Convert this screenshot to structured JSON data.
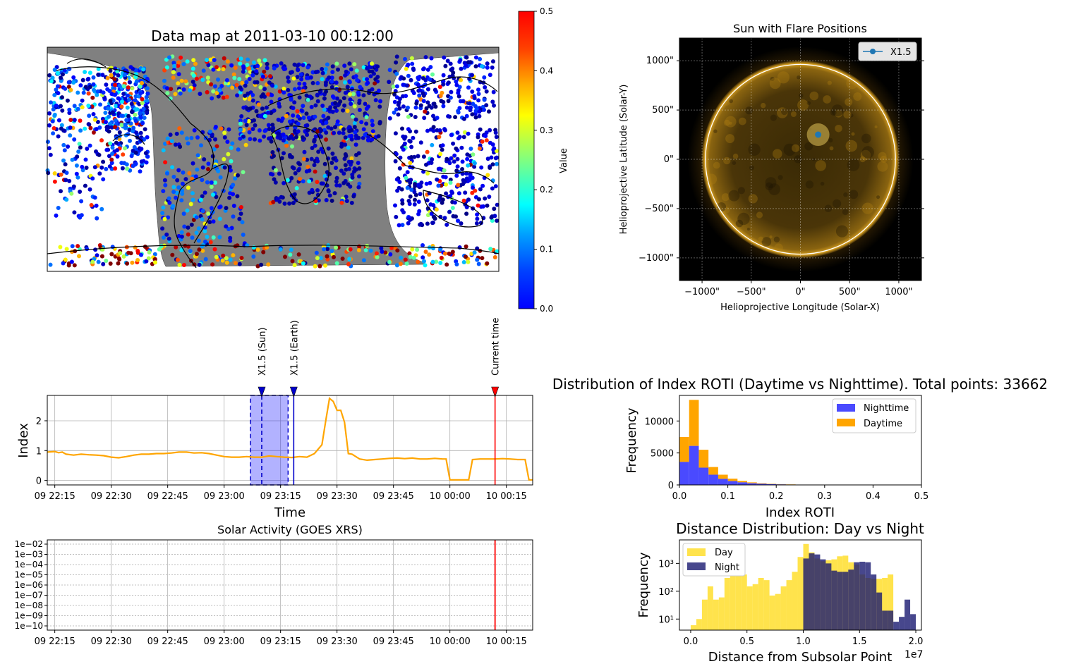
{
  "chart_data": [
    {
      "id": "map",
      "type": "scatter",
      "title": "Data map at 2011-03-10 00:12:00",
      "colorbar": {
        "label": "Value",
        "range": [
          0,
          0.5
        ],
        "ticks": [
          "0.0",
          "0.1",
          "0.2",
          "0.3",
          "0.4",
          "0.5"
        ],
        "colormap": "jet"
      },
      "night_shade_color": "#808080",
      "point_count_displayed": 33662
    },
    {
      "id": "sun",
      "type": "scatter",
      "title": "Sun with Flare Positions",
      "xlabel": "Helioprojective Longitude (Solar-X)",
      "ylabel": "Helioprojective Latitude (Solar-Y)",
      "xticks": [
        "−1000\"",
        "−500\"",
        "0\"",
        "500\"",
        "1000\""
      ],
      "yticks": [
        "1000\"",
        "500\"",
        "0\"",
        "−500\"",
        "−1000\""
      ],
      "xlim": [
        -1230,
        1230
      ],
      "ylim": [
        -1230,
        1230
      ],
      "solar_radius": 965,
      "legend": {
        "placement": "top-right",
        "entries": [
          "X1.5"
        ]
      },
      "flares": [
        {
          "name": "X1.5",
          "x": 180,
          "y": 250,
          "color": "#1f77b4"
        }
      ]
    },
    {
      "id": "index",
      "type": "line",
      "xlabel": "Time",
      "ylabel": "Index",
      "xticks": [
        "09 22:15",
        "09 22:30",
        "09 22:45",
        "09 23:00",
        "09 23:15",
        "09 23:30",
        "09 23:45",
        "10 00:00",
        "10 00:15"
      ],
      "xtick_minutes": [
        -105,
        -90,
        -75,
        -60,
        -45,
        -30,
        -15,
        0,
        15
      ],
      "yticks": [
        "0",
        "1",
        "2"
      ],
      "ylim": [
        -0.15,
        2.85
      ],
      "xlim": [
        -107,
        22
      ],
      "series_color": "#ffa500",
      "x": [
        -107,
        -105,
        -104,
        -103,
        -102,
        -100,
        -98,
        -96,
        -94,
        -92,
        -90,
        -88,
        -86,
        -84,
        -82,
        -80,
        -78,
        -76,
        -74,
        -72,
        -70,
        -68,
        -66,
        -64,
        -62,
        -60,
        -58,
        -56,
        -54,
        -52,
        -50,
        -48,
        -46,
        -44,
        -42,
        -40,
        -38,
        -36,
        -34,
        -33,
        -32,
        -31,
        -30,
        -29,
        -28,
        -27,
        -26,
        -24,
        -22,
        -20,
        -18,
        -16,
        -14,
        -12,
        -10,
        -8,
        -6,
        -4,
        -2,
        -1,
        0,
        2,
        4,
        5,
        6,
        8,
        10,
        12,
        14,
        16,
        18,
        20,
        21,
        22
      ],
      "y": [
        0.95,
        0.97,
        0.93,
        0.95,
        0.88,
        0.85,
        0.88,
        0.86,
        0.85,
        0.83,
        0.78,
        0.76,
        0.8,
        0.85,
        0.88,
        0.88,
        0.9,
        0.9,
        0.92,
        0.95,
        0.95,
        0.92,
        0.93,
        0.9,
        0.85,
        0.8,
        0.78,
        0.78,
        0.8,
        0.78,
        0.78,
        0.82,
        0.8,
        0.78,
        0.77,
        0.8,
        0.78,
        0.9,
        1.2,
        2.0,
        2.75,
        2.65,
        2.35,
        2.35,
        1.95,
        0.9,
        0.88,
        0.72,
        0.68,
        0.7,
        0.72,
        0.74,
        0.75,
        0.73,
        0.75,
        0.72,
        0.72,
        0.74,
        0.72,
        0.72,
        0.02,
        0.02,
        0.02,
        0.02,
        0.7,
        0.72,
        0.72,
        0.72,
        0.73,
        0.72,
        0.7,
        0.7,
        0.02,
        0.02
      ],
      "shaded_span": [
        -53,
        -43
      ],
      "markers": [
        {
          "label": "X1.5 (Sun)",
          "x": -50,
          "color": "#0000cc",
          "style": "dashed"
        },
        {
          "label": "X1.5 (Earth)",
          "x": -41.5,
          "color": "#0000cc",
          "style": "solid"
        },
        {
          "label": "Current time",
          "x": 12,
          "color": "#ff0000",
          "style": "solid"
        }
      ]
    },
    {
      "id": "goes",
      "type": "line",
      "title": "Solar Activity (GOES XRS)",
      "yticks": [
        "1e−02",
        "1e−03",
        "1e−04",
        "1e−05",
        "1e−06",
        "1e−07",
        "1e−08",
        "1e−09",
        "1e−10"
      ],
      "xticks": [
        "09 22:15",
        "09 22:30",
        "09 22:45",
        "09 23:00",
        "09 23:15",
        "09 23:30",
        "09 23:45",
        "10 00:00",
        "10 00:15"
      ],
      "yscale": "log",
      "current_time_x": 12
    },
    {
      "id": "roti_hist",
      "type": "bar",
      "title": "Distribution of Index ROTI (Daytime vs Nighttime). Total points: 33662",
      "xlabel": "Index ROTI",
      "ylabel": "Frequency",
      "xticks": [
        "0.0",
        "0.1",
        "0.2",
        "0.3",
        "0.4",
        "0.5"
      ],
      "yticks": [
        "0",
        "5000",
        "10000"
      ],
      "xlim": [
        0,
        0.5
      ],
      "ylim": [
        0,
        14000
      ],
      "bin_width": 0.02,
      "legend": {
        "placement": "top-right"
      },
      "series": [
        {
          "name": "Nighttime",
          "color": "#4a4aff",
          "values": [
            3600,
            6100,
            2700,
            1600,
            950,
            600,
            400,
            260,
            180,
            120,
            80,
            50,
            30,
            20,
            10
          ]
        },
        {
          "name": "Daytime",
          "color": "#ffa500",
          "values": [
            3900,
            7200,
            2800,
            1200,
            650,
            380,
            230,
            140,
            90,
            60,
            40,
            30,
            20,
            12,
            6
          ]
        }
      ]
    },
    {
      "id": "distance_hist",
      "type": "bar",
      "title": "Distance Distribution: Day vs Night",
      "xlabel": "Distance from Subsolar Point",
      "ylabel": "Frequency",
      "offset_label": "1e7",
      "xticks": [
        "0.0",
        "0.5",
        "1.0",
        "1.5",
        "2.0"
      ],
      "yticks": [
        "10¹",
        "10²",
        "10³"
      ],
      "yscale": "log",
      "ylim": [
        4,
        7000
      ],
      "legend": {
        "placement": "top-left"
      },
      "series": [
        {
          "name": "Day",
          "color": "#ffd700",
          "edges_start": 0.0,
          "bin_width": 0.05,
          "values": [
            6,
            10,
            50,
            150,
            50,
            60,
            300,
            400,
            900,
            400,
            150,
            180,
            300,
            250,
            70,
            80,
            150,
            250,
            500,
            1700,
            5000,
            2500,
            1500,
            1200,
            1300,
            1400,
            1800,
            1900,
            1100,
            900,
            400,
            300,
            280,
            280,
            300,
            400
          ]
        },
        {
          "name": "Night",
          "color": "#191970",
          "edges_start": 1.0,
          "bin_width": 0.05,
          "values": [
            1500,
            2300,
            2100,
            1400,
            1000,
            550,
            500,
            500,
            600,
            1100,
            1150,
            1100,
            400,
            90,
            20,
            20,
            8,
            12,
            50,
            15
          ]
        }
      ]
    }
  ]
}
